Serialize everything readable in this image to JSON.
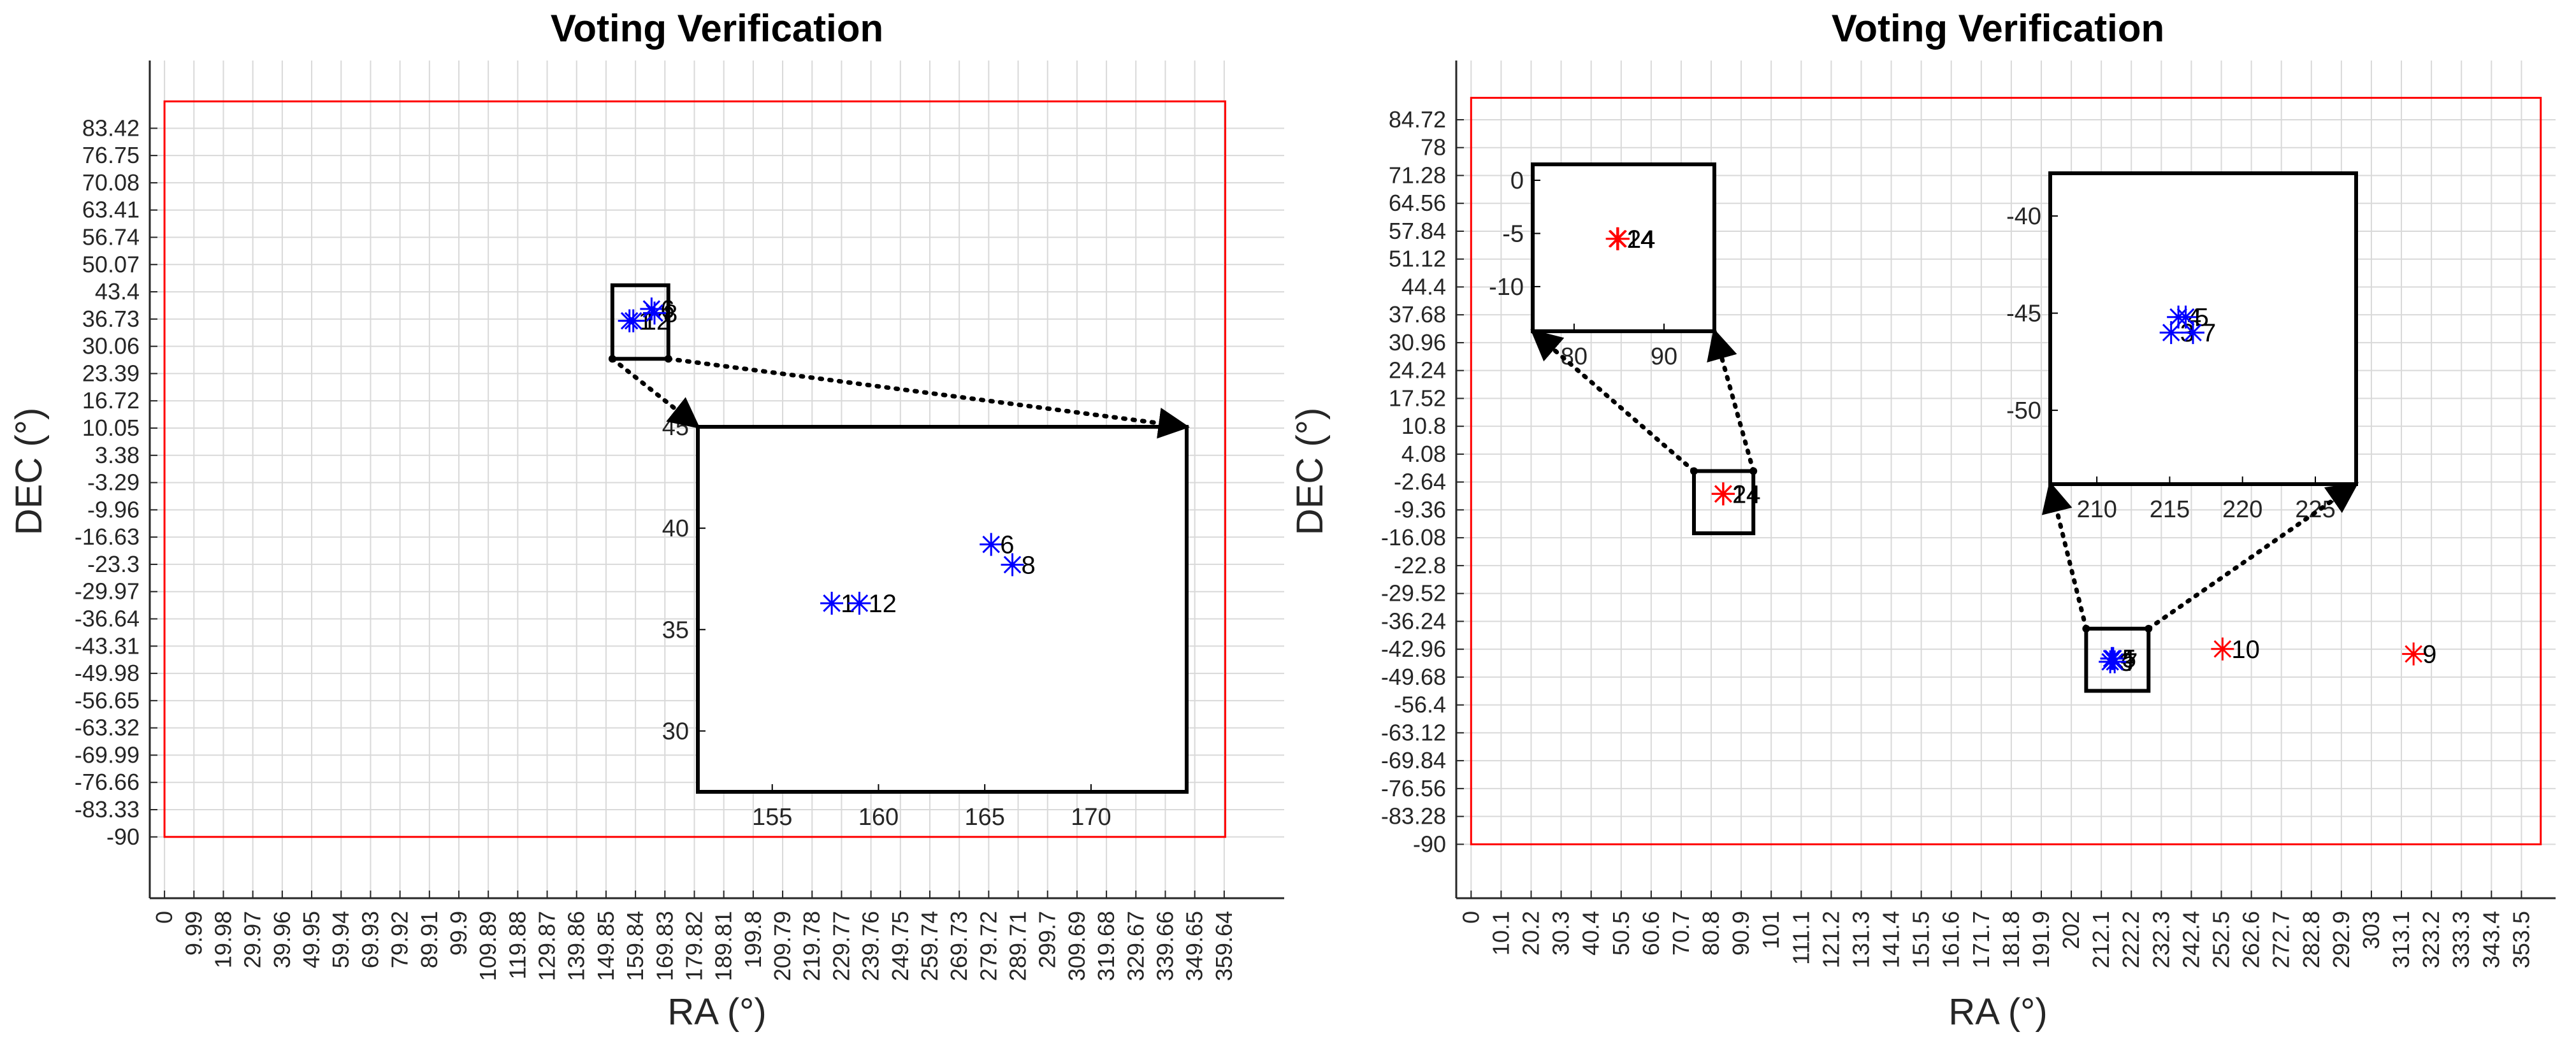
{
  "colors": {
    "background": "#ffffff",
    "boundary": "#ff0000",
    "grid": "#d9d9d9",
    "axis": "#262626",
    "blue_marker": "#0000ff",
    "red_marker": "#ff0000",
    "inset": "#000000"
  },
  "chart_data": [
    {
      "type": "scatter",
      "title": "Voting Verification",
      "xlabel": "RA (°)",
      "ylabel": "DEC (°)",
      "xlim": [
        -5,
        380
      ],
      "ylim": [
        -105,
        100
      ],
      "grid": true,
      "xticks": [
        "0",
        "9.99",
        "19.98",
        "29.97",
        "39.96",
        "49.95",
        "59.94",
        "69.93",
        "79.92",
        "89.91",
        "99.9",
        "109.89",
        "119.88",
        "129.87",
        "139.86",
        "149.85",
        "159.84",
        "169.83",
        "179.82",
        "189.81",
        "199.8",
        "209.79",
        "219.78",
        "229.77",
        "239.76",
        "249.75",
        "259.74",
        "269.73",
        "279.72",
        "289.71",
        "299.7",
        "309.69",
        "319.68",
        "329.67",
        "339.66",
        "349.65",
        "359.64"
      ],
      "yticks": [
        "83.42",
        "76.75",
        "70.08",
        "63.41",
        "56.74",
        "50.07",
        "43.4",
        "36.73",
        "30.06",
        "23.39",
        "16.72",
        "10.05",
        "3.38",
        "-3.29",
        "-9.96",
        "-16.63",
        "-23.3",
        "-29.97",
        "-36.64",
        "-43.31",
        "-49.98",
        "-56.65",
        "-63.32",
        "-69.99",
        "-76.66",
        "-83.33",
        "-90"
      ],
      "boundary": {
        "ra": [
          0,
          360
        ],
        "dec": [
          -90,
          90
        ]
      },
      "series": [
        {
          "name": "blue",
          "color": "#0000ff",
          "points": [
            {
              "id": "1",
              "ra": 157.8,
              "dec": 36.3
            },
            {
              "id": "12",
              "ra": 159.1,
              "dec": 36.3
            },
            {
              "id": "6",
              "ra": 165.3,
              "dec": 39.2
            },
            {
              "id": "8",
              "ra": 166.3,
              "dec": 38.2
            }
          ]
        }
      ],
      "zoom": {
        "region": {
          "ra": [
            152,
            171
          ],
          "dec": [
            27,
            45
          ]
        },
        "xlim": [
          151.5,
          174.5
        ],
        "ylim": [
          27,
          45
        ],
        "xticks": [
          155,
          160,
          165,
          170
        ],
        "yticks": [
          30,
          35,
          40,
          45
        ]
      }
    },
    {
      "type": "scatter",
      "title": "Voting Verification",
      "xlabel": "RA (°)",
      "ylabel": "DEC (°)",
      "xlim": [
        -5,
        365
      ],
      "ylim": [
        -103,
        99
      ],
      "grid": true,
      "xticks": [
        "0",
        "10.1",
        "20.2",
        "30.3",
        "40.4",
        "50.5",
        "60.6",
        "70.7",
        "80.8",
        "90.9",
        "101",
        "111.1",
        "121.2",
        "131.3",
        "141.4",
        "151.5",
        "161.6",
        "171.7",
        "181.8",
        "191.9",
        "202",
        "212.1",
        "222.2",
        "232.3",
        "242.4",
        "252.5",
        "262.6",
        "272.7",
        "282.8",
        "292.9",
        "303",
        "313.1",
        "323.2",
        "333.3",
        "343.4",
        "353.5"
      ],
      "yticks": [
        "84.72",
        "78",
        "71.28",
        "64.56",
        "57.84",
        "51.12",
        "44.4",
        "37.68",
        "30.96",
        "24.24",
        "17.52",
        "10.8",
        "4.08",
        "-2.64",
        "-9.36",
        "-16.08",
        "-22.8",
        "-29.52",
        "-36.24",
        "-42.96",
        "-49.68",
        "-56.4",
        "-63.12",
        "-69.84",
        "-76.56",
        "-83.28",
        "-90"
      ],
      "boundary": {
        "ra": [
          0,
          360
        ],
        "dec": [
          -90,
          90
        ]
      },
      "series": [
        {
          "name": "red",
          "color": "#ff0000",
          "points": [
            {
              "id": "9",
              "ra": 317.2,
              "dec": -44.1
            },
            {
              "id": "10",
              "ra": 252.9,
              "dec": -42.9
            },
            {
              "id": "14",
              "ra": 84.8,
              "dec": -5.5
            },
            {
              "id": "24",
              "ra": 84.9,
              "dec": -5.5
            }
          ]
        },
        {
          "name": "blue",
          "color": "#0000ff",
          "points": [
            {
              "id": "3",
              "ra": 215.1,
              "dec": -46.0
            },
            {
              "id": "4",
              "ra": 215.6,
              "dec": -45.2
            },
            {
              "id": "5",
              "ra": 216.1,
              "dec": -45.2
            },
            {
              "id": "7",
              "ra": 216.6,
              "dec": -46.0
            }
          ]
        }
      ],
      "zooms": [
        {
          "region": {
            "ra": [
              75,
              95
            ],
            "dec": [
              -15,
              0
            ]
          },
          "xlim": [
            75.4,
            95.6
          ],
          "ylim": [
            -14.2,
            1.5
          ],
          "xticks": [
            80,
            90
          ],
          "yticks": [
            0,
            -5,
            -10
          ]
        },
        {
          "region": {
            "ra": [
              207,
              228
            ],
            "dec": [
              -53,
              -38
            ]
          },
          "xlim": [
            206.8,
            227.8
          ],
          "ylim": [
            -53.8,
            -37.8
          ],
          "xticks": [
            210,
            215,
            220,
            225
          ],
          "yticks": [
            -40,
            -45,
            -50
          ]
        }
      ]
    }
  ]
}
